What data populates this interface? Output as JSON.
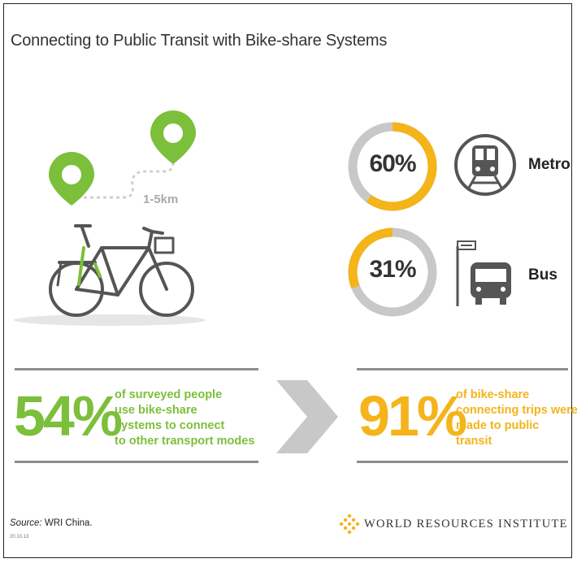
{
  "title": "Connecting to Public Transit with Bike-share Systems",
  "distance_label": "1-5km",
  "transit": [
    {
      "percent_label": "60%",
      "percent_value": 60,
      "mode": "Metro",
      "icon": "metro-train-icon",
      "ring_color": "#f4b41a"
    },
    {
      "percent_label": "31%",
      "percent_value": 31,
      "mode": "Bus",
      "icon": "bus-stop-icon",
      "ring_color": "#f4b41a"
    }
  ],
  "stat_left": {
    "value": "54%",
    "lines": [
      "of surveyed people",
      "use bike-share",
      "systems to connect",
      "to other transport modes"
    ],
    "color": "#7cbf3b"
  },
  "stat_right": {
    "value": "91%",
    "lines": [
      "of bike-share",
      "connecting trips were",
      "made to public transit"
    ],
    "color": "#f4b41a"
  },
  "footer": {
    "source_prefix": "Source:",
    "source_text": " WRI China.",
    "code": "20.10.13",
    "org": "WORLD RESOURCES INSTITUTE"
  },
  "colors": {
    "green": "#7cbf3b",
    "yellow": "#f4b41a",
    "grey": "#c8c8c8",
    "dark": "#333333"
  }
}
